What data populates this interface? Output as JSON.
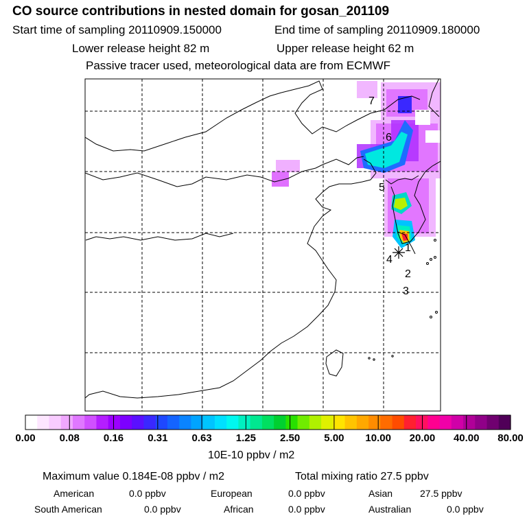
{
  "header": {
    "title": "CO  source contributions in nested domain for gosan_201109",
    "start_time": "Start time of sampling 20110909.150000",
    "end_time": "End time of sampling 20110909.180000",
    "lower_height": "Lower release height   82 m",
    "upper_height": "Upper release height   62 m",
    "tracer_note": "Passive tracer used, meteorological data are from ECMWF"
  },
  "map": {
    "site_labels": [
      "7",
      "6",
      "5",
      "1",
      "4",
      "2",
      "3"
    ]
  },
  "colorbar": {
    "ticks": [
      "0.00",
      "0.08",
      "0.16",
      "0.31",
      "0.63",
      "1.25",
      "2.50",
      "5.00",
      "10.00",
      "20.00",
      "40.00",
      "80.00"
    ],
    "units": "10E-10 ppbv / m2",
    "colors": [
      "#ffffff",
      "#fde6ff",
      "#f8ccff",
      "#f0a8ff",
      "#e078ff",
      "#d050ff",
      "#b41eff",
      "#9c00ff",
      "#7c00ff",
      "#5a10ff",
      "#3a28ff",
      "#1e48ff",
      "#1464ff",
      "#0a84ff",
      "#00a4ff",
      "#00c4ff",
      "#00e0ff",
      "#00f8f0",
      "#00f0c0",
      "#00e890",
      "#00e060",
      "#00d030",
      "#28e000",
      "#70ec00",
      "#b0f000",
      "#e0f000",
      "#ffe400",
      "#ffc400",
      "#ffa800",
      "#ff8c00",
      "#ff6c00",
      "#ff4c00",
      "#ff2030",
      "#ff1060",
      "#ff0090",
      "#f000a8",
      "#d000a8",
      "#b00098",
      "#900088",
      "#700070",
      "#500058"
    ]
  },
  "footer": {
    "max_value": "Maximum value  0.184E-08 ppbv / m2",
    "total_mixing": "Total mixing ratio      27.5 ppbv",
    "regions": [
      {
        "name": "American",
        "value": "0.0 ppbv"
      },
      {
        "name": "European",
        "value": "0.0 ppbv"
      },
      {
        "name": "Asian",
        "value": "27.5 ppbv"
      },
      {
        "name": "South American",
        "value": "0.0 ppbv"
      },
      {
        "name": "African",
        "value": "0.0 ppbv"
      },
      {
        "name": "Australian",
        "value": "0.0 ppbv"
      }
    ]
  }
}
